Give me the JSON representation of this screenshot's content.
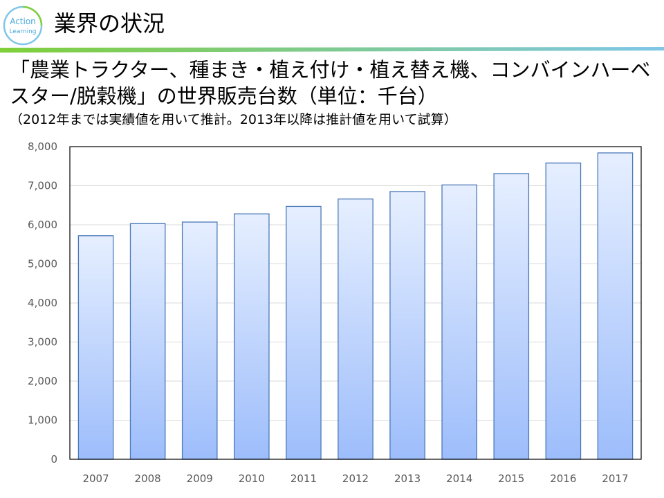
{
  "slide": {
    "title": "業界の状況",
    "logo_text_top": "Action",
    "logo_text_bottom": "Learning"
  },
  "colors": {
    "accent_green": "#7fcf3a",
    "accent_blue": "#7fc6e8",
    "bar_top": "#e6efff",
    "bar_bottom": "#9dbdfb",
    "bar_border": "#4a78b8",
    "gridline": "#d9d9d9"
  },
  "chart_data": {
    "type": "bar",
    "title": "「農業トラクター、種まき・植え付け・植え替え機、コンバインハーベスター/脱穀機」の世界販売台数（単位：千台）",
    "subtitle": "（2012年までは実績値を用いて推計。2013年以降は推計値を用いて試算）",
    "categories": [
      "2007",
      "2008",
      "2009",
      "2010",
      "2011",
      "2012",
      "2013",
      "2014",
      "2015",
      "2016",
      "2017"
    ],
    "values": [
      5720,
      6030,
      6070,
      6280,
      6470,
      6660,
      6850,
      7020,
      7310,
      7580,
      7840
    ],
    "ylim": [
      0,
      8000
    ],
    "yticks": [
      "0",
      "1,000",
      "2,000",
      "3,000",
      "4,000",
      "5,000",
      "6,000",
      "7,000",
      "8,000"
    ],
    "grid": true,
    "legend": "none"
  }
}
